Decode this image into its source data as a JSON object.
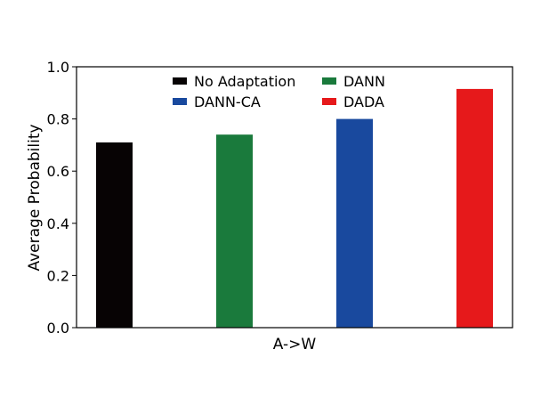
{
  "chart_data": {
    "type": "bar",
    "categories": [
      "A->W"
    ],
    "xlabel": "A->W",
    "ylabel": "Average Probability",
    "ylim": [
      0,
      1.0
    ],
    "yticks": [
      "0.0",
      "0.2",
      "0.4",
      "0.6",
      "0.8",
      "1.0"
    ],
    "grid": false,
    "legend_position": "top-center",
    "series": [
      {
        "name": "No Adaptation",
        "values": [
          0.71
        ],
        "color": "#070304"
      },
      {
        "name": "DANN",
        "values": [
          0.74
        ],
        "color": "#1a7a3c"
      },
      {
        "name": "DANN-CA",
        "values": [
          0.8
        ],
        "color": "#19499e"
      },
      {
        "name": "DADA",
        "values": [
          0.915
        ],
        "color": "#e6191b"
      }
    ]
  }
}
